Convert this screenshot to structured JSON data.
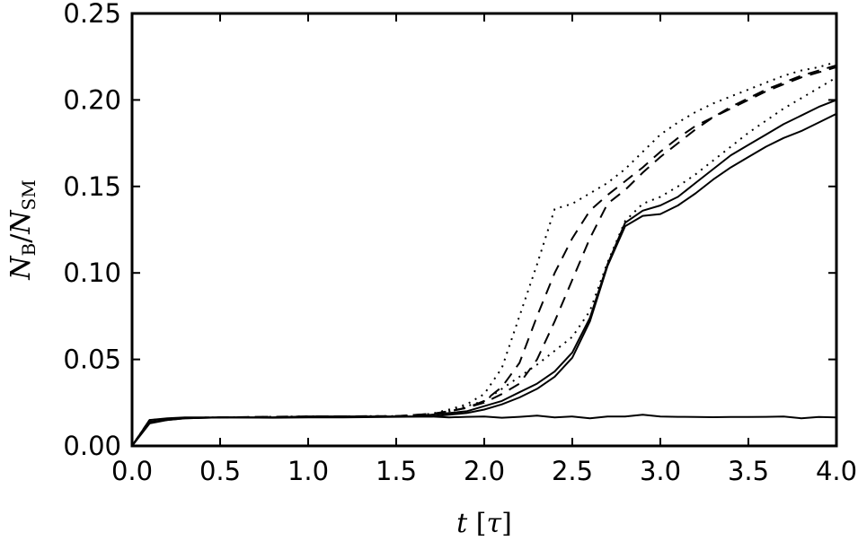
{
  "chart_data": {
    "type": "line",
    "title": "",
    "xlabel": "t [τ]",
    "ylabel": "N_B/N_SM",
    "xlim": [
      0.0,
      4.0
    ],
    "ylim": [
      0.0,
      0.25
    ],
    "xticks": [
      0.0,
      0.5,
      1.0,
      1.5,
      2.0,
      2.5,
      3.0,
      3.5,
      4.0
    ],
    "xtick_labels": [
      "0.0",
      "0.5",
      "1.0",
      "1.5",
      "2.0",
      "2.5",
      "3.0",
      "3.5",
      "4.0"
    ],
    "yticks": [
      0.0,
      0.05,
      0.1,
      0.15,
      0.2,
      0.25
    ],
    "ytick_labels": [
      "0.00",
      "0.05",
      "0.10",
      "0.15",
      "0.20",
      "0.25"
    ],
    "grid": false,
    "legend": "none",
    "series": [
      {
        "style": "solid",
        "x": [
          0,
          0.1,
          0.2,
          0.3,
          0.5,
          0.8,
          1.0,
          1.2,
          1.5,
          1.6,
          1.7,
          1.8,
          1.9,
          2.0,
          2.1,
          2.2,
          2.3,
          2.4,
          2.5,
          2.6,
          2.7,
          2.8,
          2.9,
          3.0,
          3.1,
          3.2,
          3.3,
          3.4,
          3.5,
          3.6,
          3.7,
          3.8,
          3.9,
          4.0
        ],
        "y": [
          0.0,
          0.013,
          0.015,
          0.016,
          0.0165,
          0.0165,
          0.017,
          0.017,
          0.017,
          0.017,
          0.017,
          0.018,
          0.019,
          0.021,
          0.024,
          0.028,
          0.033,
          0.04,
          0.051,
          0.072,
          0.104,
          0.127,
          0.133,
          0.134,
          0.139,
          0.146,
          0.154,
          0.161,
          0.167,
          0.173,
          0.178,
          0.182,
          0.187,
          0.192
        ]
      },
      {
        "style": "solid",
        "x": [
          0,
          0.1,
          0.2,
          0.3,
          0.5,
          0.8,
          1.0,
          1.2,
          1.5,
          1.6,
          1.7,
          1.8,
          1.9,
          2.0,
          2.1,
          2.2,
          2.3,
          2.4,
          2.5,
          2.6,
          2.7,
          2.8,
          2.9,
          3.0,
          3.1,
          3.2,
          3.3,
          3.4,
          3.5,
          3.6,
          3.7,
          3.8,
          3.9,
          4.0
        ],
        "y": [
          0.0,
          0.014,
          0.015,
          0.016,
          0.0165,
          0.0165,
          0.017,
          0.017,
          0.017,
          0.017,
          0.018,
          0.019,
          0.02,
          0.023,
          0.026,
          0.031,
          0.036,
          0.043,
          0.054,
          0.074,
          0.105,
          0.129,
          0.136,
          0.139,
          0.144,
          0.152,
          0.16,
          0.168,
          0.174,
          0.18,
          0.186,
          0.191,
          0.196,
          0.2
        ]
      },
      {
        "style": "solid",
        "x": [
          0,
          0.1,
          0.2,
          0.3,
          0.5,
          0.8,
          1.0,
          1.2,
          1.5,
          1.7,
          1.8,
          1.9,
          2.0,
          2.1,
          2.2,
          2.3,
          2.4,
          2.5,
          2.6,
          2.7,
          2.8,
          2.9,
          3.0,
          3.1,
          3.2,
          3.3,
          3.4,
          3.5,
          3.6,
          3.7,
          3.8,
          3.9,
          4.0
        ],
        "y": [
          0.0,
          0.015,
          0.016,
          0.0165,
          0.0165,
          0.0163,
          0.0165,
          0.0165,
          0.0168,
          0.017,
          0.0165,
          0.0168,
          0.017,
          0.0163,
          0.0168,
          0.0175,
          0.0165,
          0.017,
          0.016,
          0.017,
          0.017,
          0.018,
          0.017,
          0.0168,
          0.0167,
          0.0166,
          0.0167,
          0.0167,
          0.0168,
          0.017,
          0.016,
          0.0167,
          0.0165
        ]
      },
      {
        "style": "dotted",
        "x": [
          0,
          0.1,
          0.3,
          0.5,
          1.0,
          1.5,
          1.7,
          1.8,
          1.9,
          2.0,
          2.1,
          2.2,
          2.3,
          2.4,
          2.5,
          2.6,
          2.7,
          2.8,
          2.9,
          3.0,
          3.1,
          3.2,
          3.3,
          3.4,
          3.5,
          3.6,
          3.7,
          3.8,
          3.9,
          4.0
        ],
        "y": [
          0.0,
          0.015,
          0.0162,
          0.0165,
          0.017,
          0.0172,
          0.0185,
          0.02,
          0.023,
          0.026,
          0.033,
          0.04,
          0.047,
          0.055,
          0.063,
          0.078,
          0.106,
          0.13,
          0.14,
          0.144,
          0.15,
          0.157,
          0.165,
          0.173,
          0.181,
          0.188,
          0.195,
          0.201,
          0.207,
          0.213
        ]
      },
      {
        "style": "dashed",
        "x": [
          0,
          0.1,
          0.3,
          0.5,
          1.0,
          1.5,
          1.7,
          1.8,
          1.9,
          2.0,
          2.1,
          2.2,
          2.3,
          2.4,
          2.5,
          2.6,
          2.7,
          2.8,
          2.9,
          3.0,
          3.1,
          3.2,
          3.3,
          3.4,
          3.5,
          3.6,
          3.7,
          3.8,
          3.9,
          4.0
        ],
        "y": [
          0.0,
          0.015,
          0.0162,
          0.0165,
          0.017,
          0.0172,
          0.0185,
          0.02,
          0.022,
          0.025,
          0.03,
          0.036,
          0.05,
          0.072,
          0.096,
          0.12,
          0.14,
          0.148,
          0.158,
          0.167,
          0.175,
          0.183,
          0.19,
          0.196,
          0.201,
          0.206,
          0.21,
          0.214,
          0.217,
          0.22
        ]
      },
      {
        "style": "dashed",
        "x": [
          0,
          0.1,
          0.3,
          0.5,
          1.0,
          1.5,
          1.7,
          1.8,
          1.9,
          2.0,
          2.1,
          2.2,
          2.3,
          2.4,
          2.5,
          2.6,
          2.7,
          2.8,
          2.9,
          3.0,
          3.1,
          3.2,
          3.3,
          3.4,
          3.5,
          3.6,
          3.7,
          3.8,
          3.9,
          4.0
        ],
        "y": [
          0.0,
          0.015,
          0.0162,
          0.0165,
          0.017,
          0.0172,
          0.0185,
          0.02,
          0.022,
          0.026,
          0.034,
          0.048,
          0.075,
          0.1,
          0.12,
          0.136,
          0.145,
          0.153,
          0.161,
          0.17,
          0.178,
          0.185,
          0.19,
          0.195,
          0.2,
          0.205,
          0.209,
          0.213,
          0.216,
          0.219
        ]
      },
      {
        "style": "dotted",
        "x": [
          0,
          0.1,
          0.3,
          0.5,
          1.0,
          1.5,
          1.7,
          1.8,
          1.9,
          2.0,
          2.1,
          2.2,
          2.3,
          2.4,
          2.5,
          2.6,
          2.7,
          2.8,
          2.9,
          3.0,
          3.1,
          3.2,
          3.3,
          3.4,
          3.5,
          3.6,
          3.7,
          3.8,
          3.9,
          4.0
        ],
        "y": [
          0.0,
          0.015,
          0.0162,
          0.0165,
          0.017,
          0.0172,
          0.0185,
          0.021,
          0.024,
          0.03,
          0.045,
          0.075,
          0.105,
          0.137,
          0.14,
          0.146,
          0.152,
          0.16,
          0.17,
          0.18,
          0.187,
          0.193,
          0.198,
          0.202,
          0.206,
          0.21,
          0.214,
          0.217,
          0.219,
          0.222
        ]
      }
    ]
  }
}
